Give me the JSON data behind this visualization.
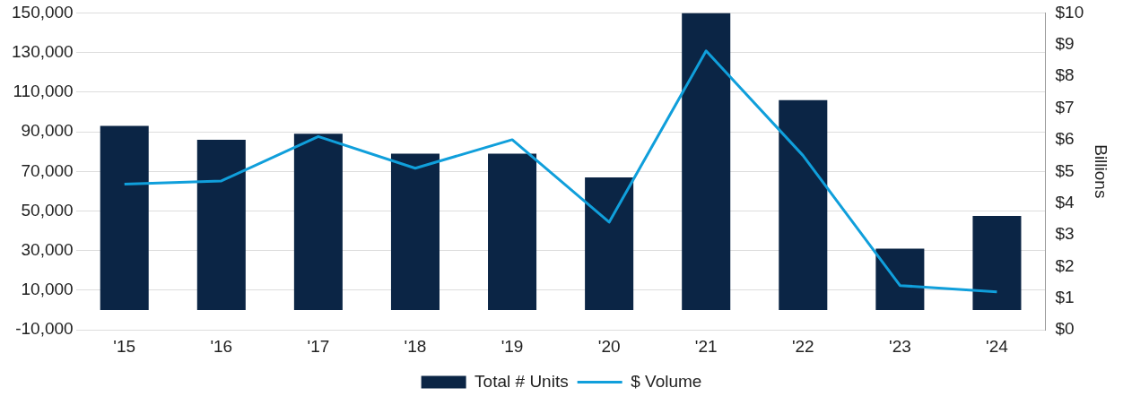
{
  "chart_data": {
    "type": "bar",
    "y2label": "Billions",
    "categories": [
      "'15",
      "'16",
      "'17",
      "'18",
      "'19",
      "'20",
      "'21",
      "'22",
      "'23",
      "'24"
    ],
    "series": [
      {
        "name": "Total # Units",
        "color": "#0b2545",
        "values": [
          93000,
          86000,
          89000,
          79000,
          79000,
          67000,
          150000,
          106000,
          31000,
          47500
        ]
      },
      {
        "name": "$ Volume",
        "type": "line",
        "axis": "y2",
        "color": "#109fdb",
        "values": [
          4.6,
          4.7,
          6.1,
          5.1,
          6.0,
          3.4,
          8.8,
          5.5,
          1.4,
          1.2
        ]
      }
    ],
    "ylim": [
      -10000,
      150000
    ],
    "yticks": [
      {
        "value": -10000,
        "label": "-10,000"
      },
      {
        "value": 10000,
        "label": "10,000"
      },
      {
        "value": 30000,
        "label": "30,000"
      },
      {
        "value": 50000,
        "label": "50,000"
      },
      {
        "value": 70000,
        "label": "70,000"
      },
      {
        "value": 90000,
        "label": "90,000"
      },
      {
        "value": 110000,
        "label": "110,000"
      },
      {
        "value": 130000,
        "label": "130,000"
      },
      {
        "value": 150000,
        "label": "150,000"
      }
    ],
    "y2lim": [
      0,
      10
    ],
    "y2ticks": [
      {
        "value": 0,
        "label": "$0"
      },
      {
        "value": 1,
        "label": "$1"
      },
      {
        "value": 2,
        "label": "$2"
      },
      {
        "value": 3,
        "label": "$3"
      },
      {
        "value": 4,
        "label": "$4"
      },
      {
        "value": 5,
        "label": "$5"
      },
      {
        "value": 6,
        "label": "$6"
      },
      {
        "value": 7,
        "label": "$7"
      },
      {
        "value": 8,
        "label": "$8"
      },
      {
        "value": 9,
        "label": "$9"
      },
      {
        "value": 10,
        "label": "$10"
      }
    ],
    "grid": "y",
    "legend": "bottom",
    "marker": "none"
  }
}
